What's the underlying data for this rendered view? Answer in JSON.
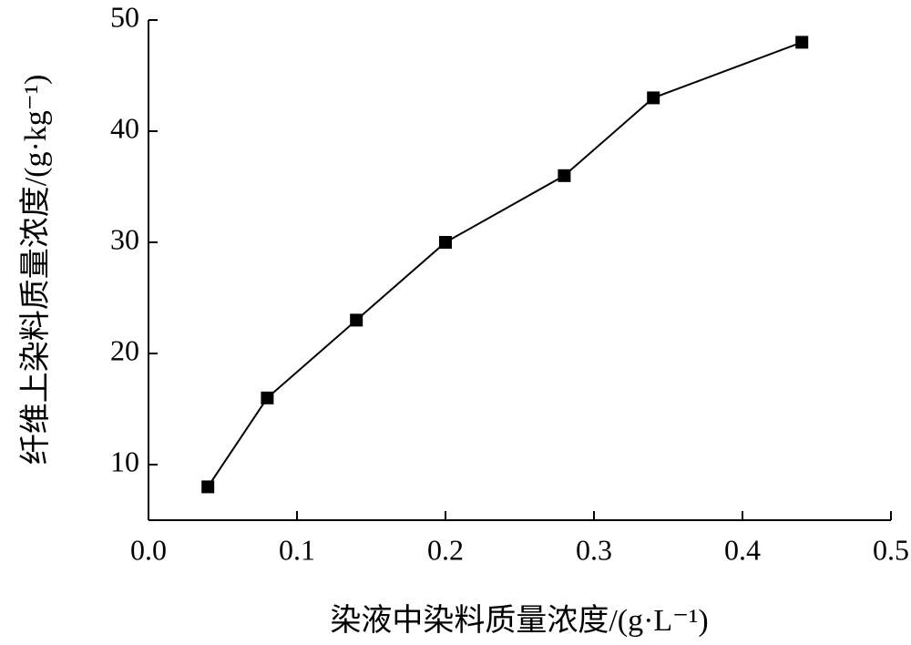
{
  "chart_data": {
    "type": "line",
    "xlabel": "染液中染料质量浓度/(g·L⁻¹)",
    "ylabel": "纤维上染料质量浓度/(g·kg⁻¹)",
    "x": [
      0.04,
      0.08,
      0.14,
      0.2,
      0.28,
      0.34,
      0.44
    ],
    "series": [
      {
        "name": "dye",
        "color": "#000000",
        "values": [
          8,
          16,
          23,
          30,
          36,
          43,
          48
        ]
      }
    ],
    "xlim": [
      0,
      0.5
    ],
    "xticks": [
      {
        "value": 0,
        "label": "0.0"
      },
      0.1,
      0.2,
      0.3,
      0.4,
      0.5
    ],
    "ylim": [
      5,
      50
    ],
    "yticks": [
      10,
      20,
      30,
      40,
      50
    ]
  }
}
